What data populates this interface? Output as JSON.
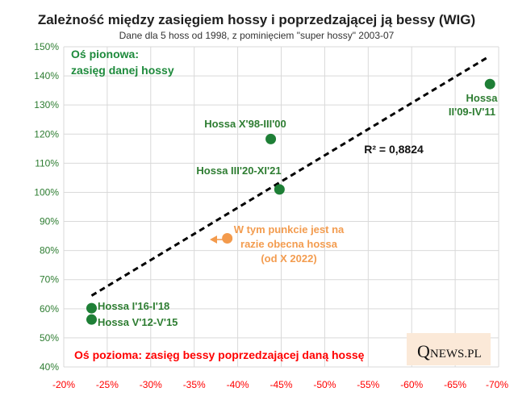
{
  "colors": {
    "point_green": "#1e7f36",
    "point_orange": "#f39a4c",
    "grid": "#d9d9d9",
    "y_tick": "#2e7d32",
    "x_tick": "#ff0000",
    "trend": "#000000"
  },
  "logo": {
    "brand": "QNEWS.PL",
    "big_letter": "Q",
    "rest": "NEWS.PL"
  },
  "chart_data": {
    "type": "scatter",
    "title": "Zależność między zasięgiem hossy i poprzedzającej ją bessy (WIG)",
    "subtitle": "Dane dla 5 hoss od 1998, z pominięciem \"super hossy\" 2003-07",
    "ylabel_lines": [
      "Oś pionowa:",
      "zasięg danej hossy"
    ],
    "xlabel": "Oś pozioma: zasięg bessy poprzedzającej daną hossę",
    "x_axis": {
      "min": -20,
      "max": -70,
      "step": -5,
      "tick_labels": [
        "-20%",
        "-25%",
        "-30%",
        "-35%",
        "-40%",
        "-45%",
        "-50%",
        "-55%",
        "-60%",
        "-65%",
        "-70%"
      ]
    },
    "y_axis": {
      "min": 40,
      "max": 150,
      "step": 10,
      "tick_labels": [
        "40%",
        "50%",
        "60%",
        "70%",
        "80%",
        "90%",
        "100%",
        "110%",
        "120%",
        "130%",
        "140%",
        "150%"
      ]
    },
    "grid": true,
    "points": [
      {
        "name": "hossa-v12-v15",
        "x": -23.2,
        "y": 56.3,
        "label": [
          "Hossa V'12-V'15"
        ],
        "color": "green"
      },
      {
        "name": "hossa-i16-i18",
        "x": -23.2,
        "y": 60.2,
        "label": [
          "Hossa I'16-I'18"
        ],
        "color": "green"
      },
      {
        "name": "hossa-iii20-xi21",
        "x": -44.8,
        "y": 101.0,
        "label": [
          "Hossa III'20-XI'21"
        ],
        "color": "green"
      },
      {
        "name": "hossa-x98-iii00",
        "x": -43.8,
        "y": 118.3,
        "label": [
          "Hossa X'98-III'00"
        ],
        "color": "green"
      },
      {
        "name": "hossa-ii09-iv11",
        "x": -69.0,
        "y": 137.2,
        "label": [
          "Hossa",
          "II'09-IV'11"
        ],
        "color": "green"
      },
      {
        "name": "current-point",
        "x": -38.8,
        "y": 84.2,
        "label": [
          "W tym punkcie jest na",
          "razie obecna hossa",
          "(od X 2022)"
        ],
        "color": "orange"
      }
    ],
    "trendline": {
      "x1": -23.2,
      "y1": 64.5,
      "x2": -68.8,
      "y2": 146.5,
      "r2_label": "R² = 0,8824"
    }
  }
}
